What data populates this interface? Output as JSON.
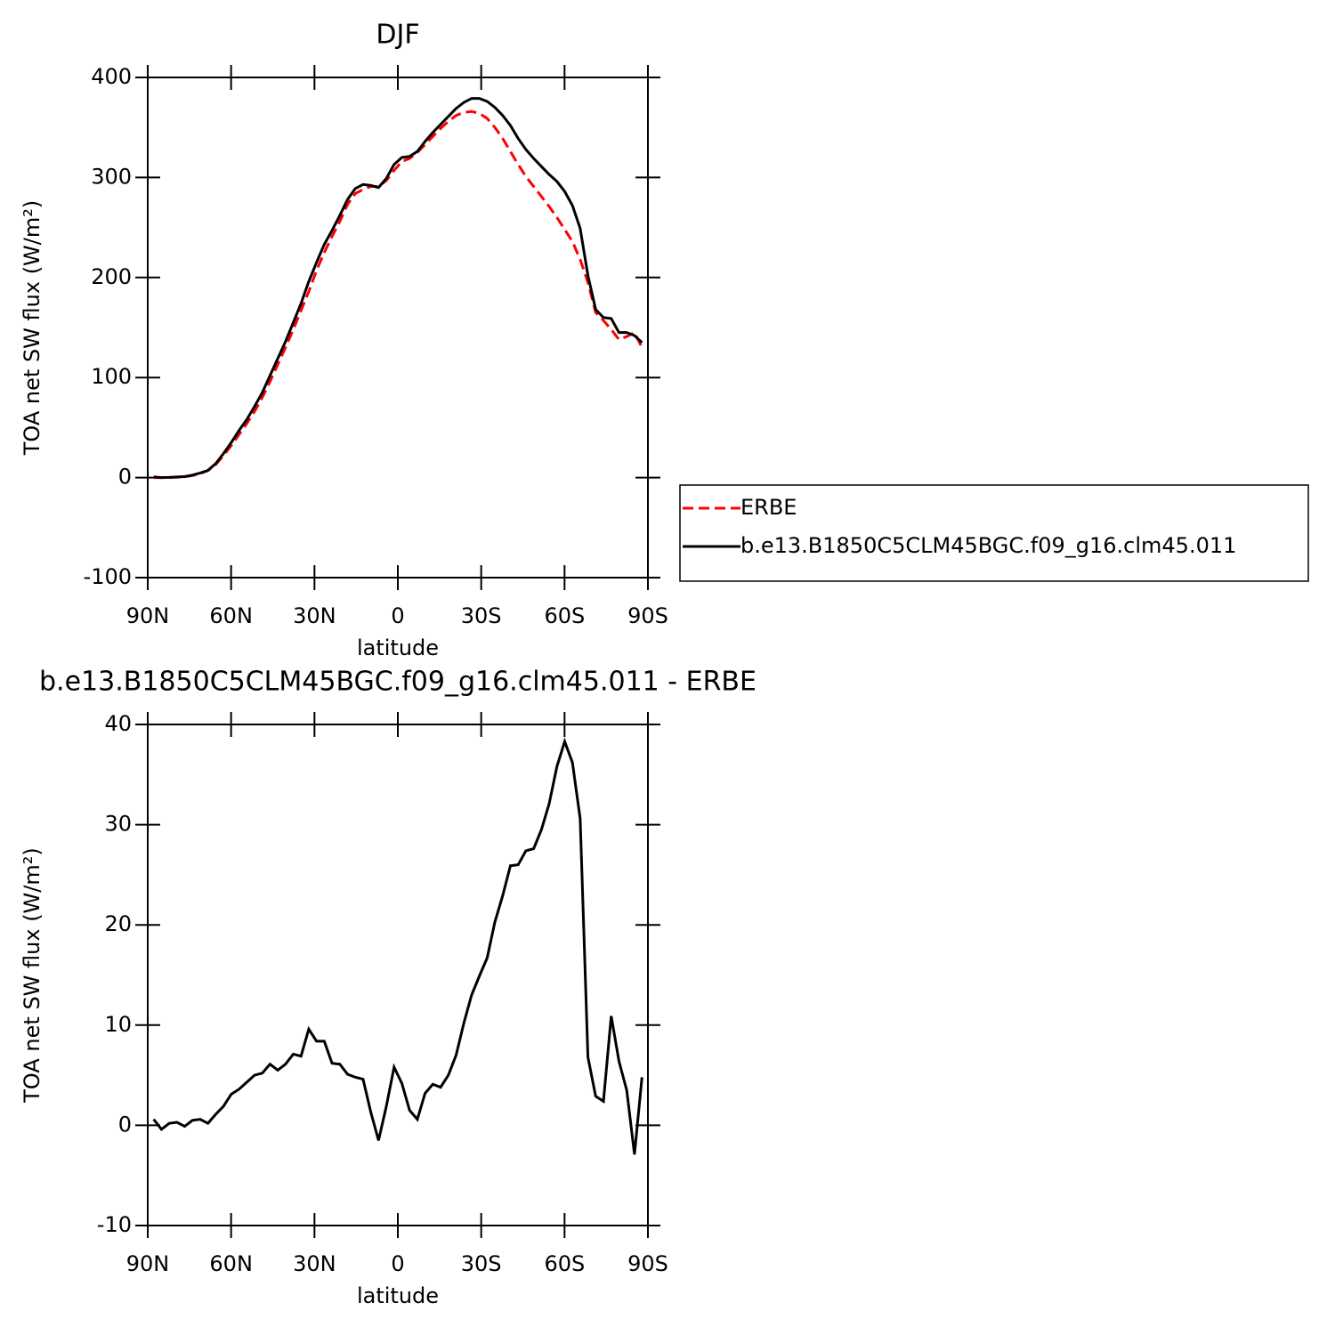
{
  "chart_data": [
    {
      "type": "line",
      "title": "DJF",
      "xlabel": "latitude",
      "ylabel": "TOA net SW flux (W/m²)",
      "xlim": [
        90,
        -90
      ],
      "ylim": [
        -100,
        400
      ],
      "xticks": [
        {
          "value": 90,
          "label": "90N"
        },
        {
          "value": 60,
          "label": "60N"
        },
        {
          "value": 30,
          "label": "30N"
        },
        0,
        {
          "value": -30,
          "label": "30S"
        },
        {
          "value": -60,
          "label": "60S"
        },
        {
          "value": -90,
          "label": "90S"
        }
      ],
      "yticks": [
        -100,
        0,
        100,
        200,
        300,
        400
      ],
      "legend": "right",
      "x": [
        87.86,
        85.07,
        82.28,
        79.49,
        76.7,
        73.91,
        71.12,
        68.33,
        65.54,
        62.75,
        59.95,
        57.16,
        54.37,
        51.58,
        48.79,
        46.0,
        43.21,
        40.42,
        37.63,
        34.84,
        32.05,
        29.26,
        26.47,
        23.68,
        20.89,
        18.1,
        15.3,
        12.51,
        9.72,
        6.93,
        4.14,
        1.35,
        -1.44,
        -4.23,
        -7.02,
        -9.81,
        -12.6,
        -15.39,
        -18.18,
        -20.97,
        -23.76,
        -26.55,
        -29.35,
        -32.14,
        -34.93,
        -37.72,
        -40.51,
        -43.3,
        -46.09,
        -48.88,
        -51.67,
        -54.46,
        -57.25,
        -60.04,
        -62.83,
        -65.62,
        -68.41,
        -71.2,
        -74.0,
        -76.79,
        -79.58,
        -82.37,
        -85.16,
        -87.86
      ],
      "series": [
        {
          "name": "ERBE",
          "color": "#ff0000",
          "linestyle": "dashed",
          "values": [
            0,
            0,
            0,
            0.3,
            1,
            2,
            4,
            7,
            13,
            22,
            32,
            43,
            54,
            66,
            80,
            96,
            113,
            130,
            148,
            167,
            186,
            207,
            225,
            241,
            256,
            273,
            284,
            288,
            291,
            291,
            297,
            307,
            316,
            319,
            325,
            333,
            341,
            349,
            356,
            362,
            365,
            366,
            364,
            359,
            350,
            339,
            326,
            313,
            301,
            291,
            281,
            271,
            260,
            248,
            236,
            218,
            195,
            165,
            157,
            148,
            138,
            141,
            145,
            130
          ]
        },
        {
          "name": "b.e13.B1850C5CLM45BGC.f09_g16.clm45.011",
          "color": "#000000",
          "linestyle": "solid",
          "values": [
            0.6,
            0,
            0.2,
            0.6,
            1,
            2.5,
            4.6,
            7.2,
            14,
            24,
            35,
            47,
            58,
            71,
            85,
            102,
            119,
            136,
            155,
            174,
            196,
            215,
            233,
            247,
            262,
            278,
            289,
            293,
            292,
            290,
            299,
            313,
            320,
            321,
            326,
            336,
            345,
            353,
            361,
            369,
            375,
            379,
            379,
            376,
            370,
            362,
            352,
            339,
            328,
            319,
            311,
            303,
            296,
            286,
            272,
            249,
            202,
            168,
            160,
            159,
            145,
            145,
            142,
            135
          ]
        }
      ]
    },
    {
      "type": "line",
      "title": "b.e13.B1850C5CLM45BGC.f09_g16.clm45.011 - ERBE",
      "xlabel": "latitude",
      "ylabel": "TOA net SW flux (W/m²)",
      "xlim": [
        90,
        -90
      ],
      "ylim": [
        -10,
        40
      ],
      "xticks": [
        {
          "value": 90,
          "label": "90N"
        },
        {
          "value": 60,
          "label": "60N"
        },
        {
          "value": 30,
          "label": "30N"
        },
        0,
        {
          "value": -30,
          "label": "30S"
        },
        {
          "value": -60,
          "label": "60S"
        },
        {
          "value": -90,
          "label": "90S"
        }
      ],
      "yticks": [
        -10,
        0,
        10,
        20,
        30,
        40
      ],
      "x": [
        87.86,
        85.07,
        82.28,
        79.49,
        76.7,
        73.91,
        71.12,
        68.33,
        65.54,
        62.75,
        59.95,
        57.16,
        54.37,
        51.58,
        48.79,
        46.0,
        43.21,
        40.42,
        37.63,
        34.84,
        32.05,
        29.26,
        26.47,
        23.68,
        20.89,
        18.1,
        15.3,
        12.51,
        9.72,
        6.93,
        4.14,
        1.35,
        -1.44,
        -4.23,
        -7.02,
        -9.81,
        -12.6,
        -15.39,
        -18.18,
        -20.97,
        -23.76,
        -26.55,
        -29.35,
        -32.14,
        -34.93,
        -37.72,
        -40.51,
        -43.3,
        -46.09,
        -48.88,
        -51.67,
        -54.46,
        -57.25,
        -60.04,
        -62.83,
        -65.62,
        -68.41,
        -71.2,
        -74.0,
        -76.79,
        -79.58,
        -82.37,
        -85.16,
        -87.86
      ],
      "series": [
        {
          "color": "#000000",
          "linestyle": "solid",
          "values": [
            0.6,
            -0.4,
            0.2,
            0.3,
            -0.1,
            0.5,
            0.6,
            0.2,
            1.1,
            1.9,
            3.1,
            3.6,
            4.3,
            5.0,
            5.2,
            6.1,
            5.5,
            6.1,
            7.1,
            6.9,
            9.6,
            8.4,
            8.4,
            6.2,
            6.1,
            5.1,
            4.8,
            4.6,
            1.3,
            -1.5,
            1.9,
            5.8,
            4.2,
            1.5,
            0.6,
            3.2,
            4.1,
            3.8,
            5.0,
            7.0,
            10.2,
            13.0,
            14.9,
            16.7,
            20.3,
            22.9,
            25.9,
            26.0,
            27.4,
            27.6,
            29.5,
            32.1,
            35.8,
            38.3,
            36.2,
            30.6,
            6.8,
            2.9,
            2.4,
            10.9,
            6.4,
            3.5,
            -2.9,
            4.8
          ]
        }
      ]
    }
  ]
}
